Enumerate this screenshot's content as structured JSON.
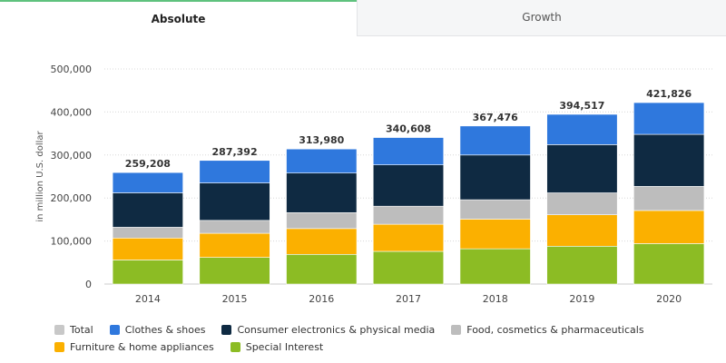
{
  "tabs": [
    {
      "label": "Absolute",
      "active": true
    },
    {
      "label": "Growth",
      "active": false
    }
  ],
  "chart_data": {
    "type": "bar",
    "stacked": true,
    "title": "",
    "xlabel": "",
    "ylabel": "in million U.S. dollar",
    "ylim": [
      0,
      500000
    ],
    "yticks": [
      0,
      100000,
      200000,
      300000,
      400000,
      500000
    ],
    "ytick_labels": [
      "0",
      "100,000",
      "200,000",
      "300,000",
      "400,000",
      "500,000"
    ],
    "grid": true,
    "legend_position": "bottom-left",
    "categories": [
      "2014",
      "2015",
      "2016",
      "2017",
      "2018",
      "2019",
      "2020"
    ],
    "totals": [
      259208,
      287392,
      313980,
      340608,
      367476,
      394517,
      421826
    ],
    "total_labels": [
      "259,208",
      "287,392",
      "313,980",
      "340,608",
      "367,476",
      "394,517",
      "421,826"
    ],
    "series": [
      {
        "name": "Special Interest",
        "color": "#8cbc24",
        "values": [
          56000,
          62000,
          69000,
          76000,
          82000,
          88000,
          94000
        ]
      },
      {
        "name": "Furniture & home appliances",
        "color": "#fbb000",
        "values": [
          51000,
          56000,
          60000,
          63000,
          69000,
          73000,
          77000
        ]
      },
      {
        "name": "Food, cosmetics & pharmaceuticals",
        "color": "#bdbdbd",
        "values": [
          25000,
          30000,
          37000,
          42000,
          45000,
          51000,
          56000
        ]
      },
      {
        "name": "Consumer electronics & physical media",
        "color": "#0f2a42",
        "values": [
          80000,
          87000,
          92000,
          96000,
          104000,
          112000,
          121000
        ]
      },
      {
        "name": "Clothes & shoes",
        "color": "#2f78dd",
        "values": [
          47208,
          52392,
          55980,
          63608,
          67476,
          70517,
          73826
        ]
      }
    ],
    "legend": [
      {
        "name": "Total",
        "color": "#c8c8c8"
      },
      {
        "name": "Clothes & shoes",
        "color": "#2f78dd"
      },
      {
        "name": "Consumer electronics & physical media",
        "color": "#0f2a42"
      },
      {
        "name": "Food, cosmetics & pharmaceuticals",
        "color": "#bdbdbd"
      },
      {
        "name": "Furniture & home appliances",
        "color": "#fbb000"
      },
      {
        "name": "Special Interest",
        "color": "#8cbc24"
      }
    ]
  }
}
